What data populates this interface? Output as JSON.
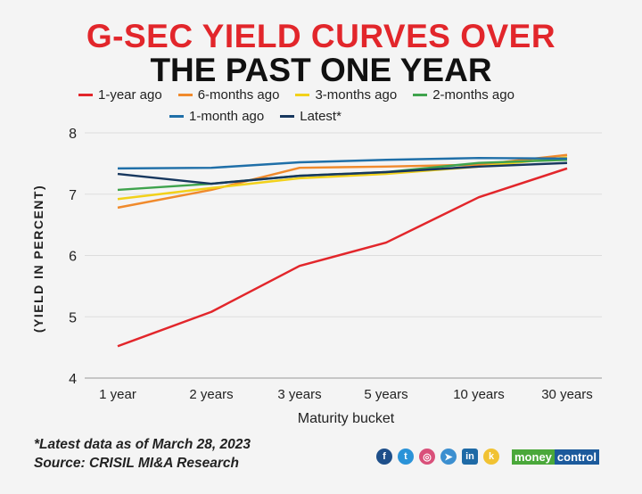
{
  "chart_data": {
    "type": "line",
    "title_line1": "G-SEC YIELD CURVES OVER",
    "title_line2": "THE PAST ONE YEAR",
    "xlabel": "Maturity bucket",
    "ylabel": "(YIELD IN PERCENT)",
    "categories": [
      "1 year",
      "2 years",
      "3 years",
      "5 years",
      "10 years",
      "30 years"
    ],
    "ylim": [
      4,
      8
    ],
    "yticks": [
      4,
      5,
      6,
      7,
      8
    ],
    "grid": true,
    "legend_position": "top",
    "series": [
      {
        "name": "1-year ago",
        "color": "#e2262b",
        "values": [
          4.52,
          5.08,
          5.83,
          6.21,
          6.95,
          7.42
        ]
      },
      {
        "name": "6-months ago",
        "color": "#f08a2c",
        "values": [
          6.78,
          7.07,
          7.43,
          7.45,
          7.48,
          7.64
        ]
      },
      {
        "name": "3-months ago",
        "color": "#f2d11a",
        "values": [
          6.92,
          7.1,
          7.26,
          7.33,
          7.45,
          7.6
        ]
      },
      {
        "name": "2-months ago",
        "color": "#3fa34d",
        "values": [
          7.07,
          7.17,
          7.3,
          7.36,
          7.51,
          7.56
        ]
      },
      {
        "name": "1-month ago",
        "color": "#1f6fa8",
        "values": [
          7.42,
          7.43,
          7.52,
          7.56,
          7.59,
          7.58
        ]
      },
      {
        "name": "Latest*",
        "color": "#17375e",
        "values": [
          7.33,
          7.17,
          7.3,
          7.36,
          7.45,
          7.51
        ]
      }
    ]
  },
  "footer": {
    "note": "*Latest data as of March 28, 2023",
    "source": "Source: CRISIL MI&A Research"
  },
  "branding": {
    "logo_text_1": "money",
    "logo_text_2": "control",
    "icons": [
      "facebook-icon",
      "twitter-icon",
      "instagram-icon",
      "telegram-icon",
      "linkedin-icon",
      "koo-icon"
    ]
  }
}
